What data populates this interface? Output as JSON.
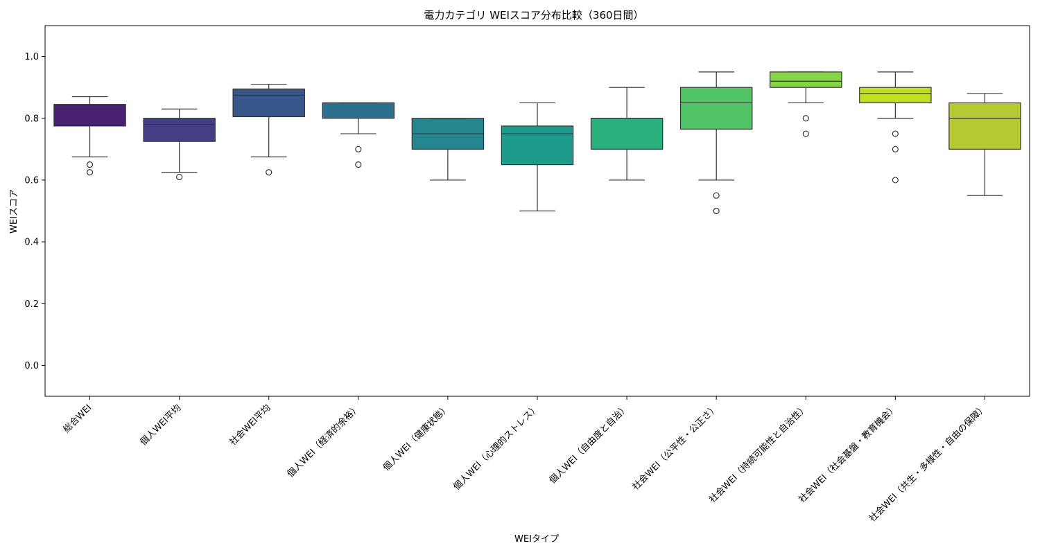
{
  "chart_data": {
    "type": "box",
    "title": "電力カテゴリ WEIスコア分布比較（360日間）",
    "xlabel": "WEIタイプ",
    "ylabel": "WEIスコア",
    "ylim": [
      -0.1,
      1.1
    ],
    "yticks": [
      "0.0",
      "0.2",
      "0.4",
      "0.6",
      "0.8",
      "1.0"
    ],
    "grid": false,
    "legend": "none",
    "categories": [
      "総合WEI",
      "個人WEI平均",
      "社会WEI平均",
      "個人WEI（経済的余裕）",
      "個人WEI（健康状態）",
      "個人WEI（心理的ストレス）",
      "個人WEI（自由度と自治）",
      "社会WEI（公平性・公正さ）",
      "社会WEI（持続可能性と自治性）",
      "社会WEI（社会基盤・教育機会）",
      "社会WEI（共生・多様性・自由の保障）"
    ],
    "colors": [
      "#482173",
      "#433e85",
      "#38588c",
      "#2d708e",
      "#25858e",
      "#1e9b8a",
      "#2ab07f",
      "#52c569",
      "#86d549",
      "#c2df23",
      "#b6c932"
    ],
    "boxes": [
      {
        "whisker_low": 0.675,
        "q1": 0.775,
        "median": 0.83,
        "q3": 0.845,
        "whisker_high": 0.87,
        "outliers": [
          0.65,
          0.625
        ]
      },
      {
        "whisker_low": 0.625,
        "q1": 0.725,
        "median": 0.78,
        "q3": 0.8,
        "whisker_high": 0.83,
        "outliers": [
          0.61
        ]
      },
      {
        "whisker_low": 0.675,
        "q1": 0.805,
        "median": 0.875,
        "q3": 0.895,
        "whisker_high": 0.91,
        "outliers": [
          0.625
        ]
      },
      {
        "whisker_low": 0.75,
        "q1": 0.8,
        "median": 0.85,
        "q3": 0.85,
        "whisker_high": 0.85,
        "outliers": [
          0.7,
          0.65
        ]
      },
      {
        "whisker_low": 0.6,
        "q1": 0.7,
        "median": 0.75,
        "q3": 0.8,
        "whisker_high": 0.8,
        "outliers": []
      },
      {
        "whisker_low": 0.5,
        "q1": 0.65,
        "median": 0.75,
        "q3": 0.775,
        "whisker_high": 0.85,
        "outliers": []
      },
      {
        "whisker_low": 0.6,
        "q1": 0.7,
        "median": 0.8,
        "q3": 0.8,
        "whisker_high": 0.9,
        "outliers": []
      },
      {
        "whisker_low": 0.6,
        "q1": 0.765,
        "median": 0.85,
        "q3": 0.9,
        "whisker_high": 0.95,
        "outliers": [
          0.55,
          0.5
        ]
      },
      {
        "whisker_low": 0.85,
        "q1": 0.9,
        "median": 0.92,
        "q3": 0.95,
        "whisker_high": 0.95,
        "outliers": [
          0.8,
          0.75
        ]
      },
      {
        "whisker_low": 0.8,
        "q1": 0.85,
        "median": 0.88,
        "q3": 0.9,
        "whisker_high": 0.95,
        "outliers": [
          0.75,
          0.7,
          0.6
        ]
      },
      {
        "whisker_low": 0.55,
        "q1": 0.7,
        "median": 0.8,
        "q3": 0.85,
        "whisker_high": 0.88,
        "outliers": []
      }
    ]
  }
}
